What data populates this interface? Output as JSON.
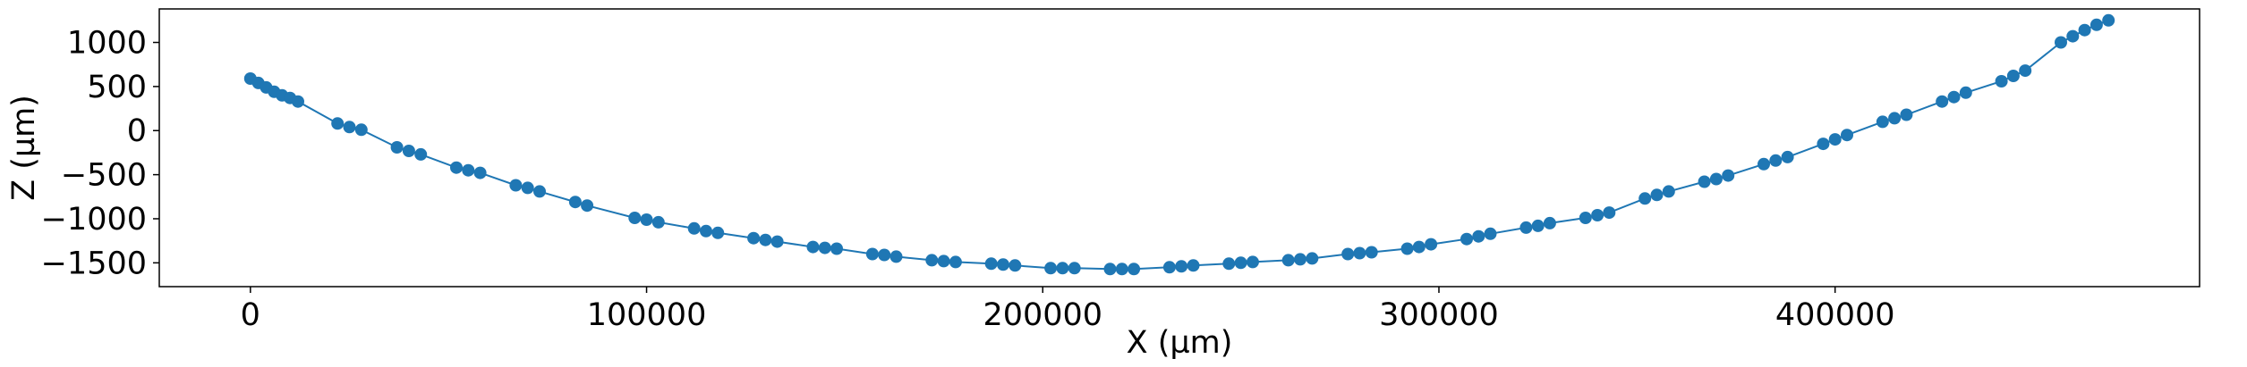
{
  "chart_data": {
    "type": "line",
    "title": "",
    "xlabel": "X (µm)",
    "ylabel": "Z (µm)",
    "xlim": [
      -23000,
      492000
    ],
    "ylim": [
      -1770,
      1380
    ],
    "xticks": [
      0,
      100000,
      200000,
      300000,
      400000
    ],
    "xtick_labels": [
      "0",
      "100000",
      "200000",
      "300000",
      "400000"
    ],
    "yticks": [
      1000,
      500,
      0,
      -500,
      -1000,
      -1500
    ],
    "ytick_labels": [
      "1000",
      "500",
      "0",
      "−500",
      "−1000",
      "−1500"
    ],
    "grid": false,
    "legend": "none",
    "series": [
      {
        "color": "#1f77b4",
        "marker": "circle",
        "x": [
          0,
          2000,
          4000,
          6000,
          8000,
          10000,
          12000,
          22000,
          25000,
          28000,
          37000,
          40000,
          43000,
          52000,
          55000,
          58000,
          67000,
          70000,
          73000,
          82000,
          85000,
          97000,
          100000,
          103000,
          112000,
          115000,
          118000,
          127000,
          130000,
          133000,
          142000,
          145000,
          148000,
          157000,
          160000,
          163000,
          172000,
          175000,
          178000,
          187000,
          190000,
          193000,
          202000,
          205000,
          208000,
          217000,
          220000,
          223000,
          232000,
          235000,
          238000,
          247000,
          250000,
          253000,
          262000,
          265000,
          268000,
          277000,
          280000,
          283000,
          292000,
          295000,
          298000,
          307000,
          310000,
          313000,
          322000,
          325000,
          328000,
          337000,
          340000,
          343000,
          352000,
          355000,
          358000,
          367000,
          370000,
          373000,
          382000,
          385000,
          388000,
          397000,
          400000,
          403000,
          412000,
          415000,
          418000,
          427000,
          430000,
          433000,
          442000,
          445000,
          448000,
          457000,
          460000,
          463000,
          466000,
          469000
        ],
        "y": [
          590,
          540,
          490,
          440,
          400,
          370,
          330,
          80,
          40,
          10,
          -190,
          -230,
          -270,
          -420,
          -450,
          -480,
          -620,
          -650,
          -690,
          -810,
          -850,
          -990,
          -1010,
          -1040,
          -1110,
          -1140,
          -1160,
          -1220,
          -1240,
          -1260,
          -1320,
          -1330,
          -1340,
          -1400,
          -1410,
          -1430,
          -1470,
          -1480,
          -1490,
          -1510,
          -1520,
          -1530,
          -1560,
          -1560,
          -1560,
          -1570,
          -1570,
          -1570,
          -1550,
          -1540,
          -1530,
          -1510,
          -1500,
          -1490,
          -1470,
          -1460,
          -1450,
          -1400,
          -1390,
          -1380,
          -1340,
          -1320,
          -1290,
          -1230,
          -1200,
          -1170,
          -1100,
          -1080,
          -1050,
          -990,
          -960,
          -930,
          -770,
          -730,
          -690,
          -580,
          -550,
          -510,
          -380,
          -340,
          -300,
          -150,
          -100,
          -50,
          100,
          140,
          180,
          330,
          380,
          430,
          560,
          620,
          680,
          1000,
          1070,
          1140,
          1200,
          1250
        ]
      }
    ]
  }
}
